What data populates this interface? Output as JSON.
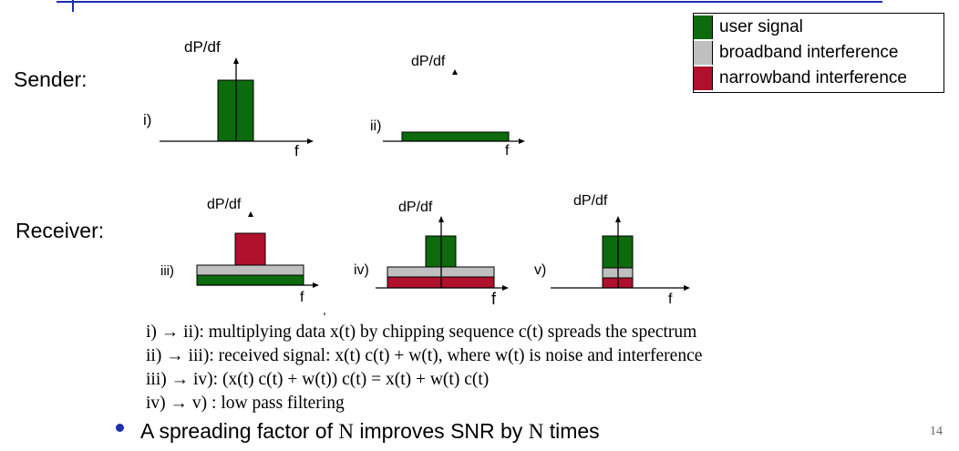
{
  "colors": {
    "user_signal": "#0c6b0c",
    "broadband_interference": "#bfbfbf",
    "narrowband_interference": "#b0102c",
    "header_line": "#1c2fb0",
    "bullet": "#1c2fb0"
  },
  "legend": [
    {
      "key": "user_signal",
      "label": "user signal"
    },
    {
      "key": "broadband_interference",
      "label": "broadband interference"
    },
    {
      "key": "narrowband_interference",
      "label": "narrowband interference"
    }
  ],
  "sections": {
    "sender": "Sender:",
    "receiver": "Receiver:"
  },
  "panels": {
    "i": {
      "label": "i)",
      "ylabel": "dP/df",
      "xlabel": "f"
    },
    "ii": {
      "label": "ii)",
      "ylabel": "dP/df",
      "xlabel": "f"
    },
    "iii": {
      "label": "iii)",
      "ylabel": "dP/df",
      "xlabel": "f"
    },
    "iv": {
      "label": "iv)",
      "ylabel": "dP/df",
      "xlabel": "f"
    },
    "v": {
      "label": "v)",
      "ylabel": "dP/df",
      "xlabel": "f"
    }
  },
  "notes": [
    "i) → ii):   multiplying data x(t) by chipping sequence c(t) spreads the spectrum",
    "ii) → iii):  received signal: x(t) c(t) + w(t), where w(t) is noise and interference",
    "iii) → iv): (x(t) c(t) + w(t)) c(t) = x(t) + w(t) c(t)",
    "iv) → v) :  low pass filtering"
  ],
  "bullet": {
    "prefix": "A spreading factor of ",
    "n1": "N",
    "middle": " improves SNR by ",
    "n2": "N",
    "suffix": " times"
  },
  "page_number": "14"
}
